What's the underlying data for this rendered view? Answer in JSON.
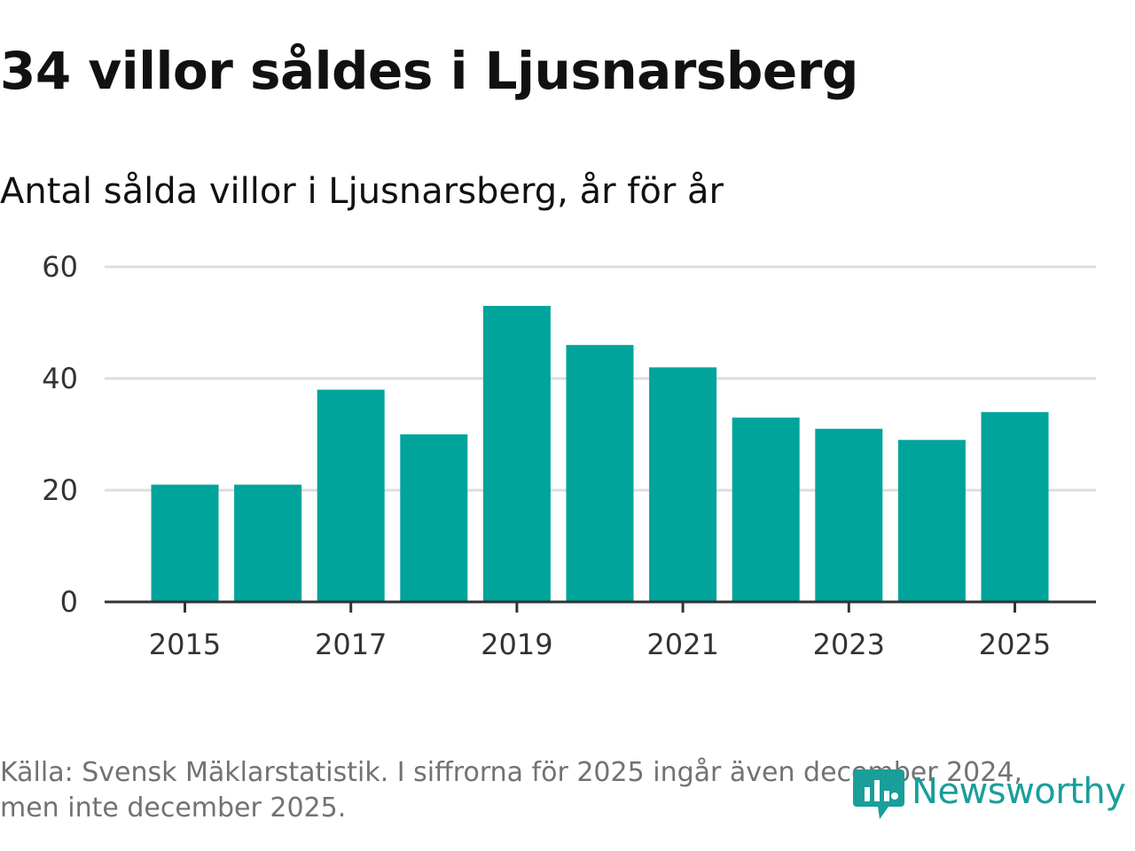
{
  "title": "34 villor såldes i Ljusnarsberg",
  "subtitle": "Antal sålda villor i Ljusnarsberg, år för år",
  "source": "Källa: Svensk Mäklarstatistik. I siffrorna för 2025 ingår även december 2024, men inte december 2025.",
  "logo": {
    "text": "Newsworthy",
    "icon": "newsworthy-logo-icon",
    "color": "#1a9e9a"
  },
  "colors": {
    "bar": "#00a49a",
    "grid": "#dddddd",
    "axis": "#333333",
    "text": "#333333"
  },
  "chart_data": {
    "type": "bar",
    "title": "Antal sålda villor i Ljusnarsberg, år för år",
    "categories": [
      2015,
      2016,
      2017,
      2018,
      2019,
      2020,
      2021,
      2022,
      2023,
      2024,
      2025
    ],
    "values": [
      21,
      21,
      38,
      30,
      53,
      46,
      42,
      33,
      31,
      29,
      34
    ],
    "xticks": [
      "2015",
      "2017",
      "2019",
      "2021",
      "2023",
      "2025"
    ],
    "yticks": [
      "0",
      "20",
      "40",
      "60"
    ],
    "ylim": [
      0,
      60
    ],
    "xlabel": "",
    "ylabel": "",
    "grid": true
  }
}
